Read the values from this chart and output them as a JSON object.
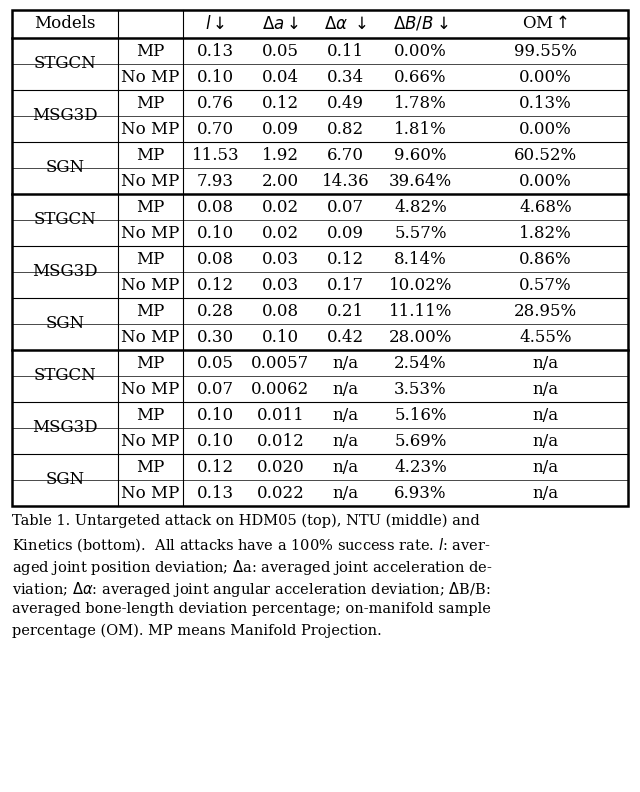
{
  "col_headers": [
    "Models",
    "",
    "$l\\downarrow$",
    "$\\Delta a\\downarrow$",
    "$\\Delta\\alpha$ $\\downarrow$",
    "$\\Delta B/B\\downarrow$",
    "OM$\\uparrow$"
  ],
  "sections": [
    {
      "rows": [
        [
          "STGCN",
          "MP",
          "0.13",
          "0.05",
          "0.11",
          "0.00%",
          "99.55%"
        ],
        [
          "STGCN",
          "No MP",
          "0.10",
          "0.04",
          "0.34",
          "0.66%",
          "0.00%"
        ],
        [
          "MSG3D",
          "MP",
          "0.76",
          "0.12",
          "0.49",
          "1.78%",
          "0.13%"
        ],
        [
          "MSG3D",
          "No MP",
          "0.70",
          "0.09",
          "0.82",
          "1.81%",
          "0.00%"
        ],
        [
          "SGN",
          "MP",
          "11.53",
          "1.92",
          "6.70",
          "9.60%",
          "60.52%"
        ],
        [
          "SGN",
          "No MP",
          "7.93",
          "2.00",
          "14.36",
          "39.64%",
          "0.00%"
        ]
      ]
    },
    {
      "rows": [
        [
          "STGCN",
          "MP",
          "0.08",
          "0.02",
          "0.07",
          "4.82%",
          "4.68%"
        ],
        [
          "STGCN",
          "No MP",
          "0.10",
          "0.02",
          "0.09",
          "5.57%",
          "1.82%"
        ],
        [
          "MSG3D",
          "MP",
          "0.08",
          "0.03",
          "0.12",
          "8.14%",
          "0.86%"
        ],
        [
          "MSG3D",
          "No MP",
          "0.12",
          "0.03",
          "0.17",
          "10.02%",
          "0.57%"
        ],
        [
          "SGN",
          "MP",
          "0.28",
          "0.08",
          "0.21",
          "11.11%",
          "28.95%"
        ],
        [
          "SGN",
          "No MP",
          "0.30",
          "0.10",
          "0.42",
          "28.00%",
          "4.55%"
        ]
      ]
    },
    {
      "rows": [
        [
          "STGCN",
          "MP",
          "0.05",
          "0.0057",
          "n/a",
          "2.54%",
          "n/a"
        ],
        [
          "STGCN",
          "No MP",
          "0.07",
          "0.0062",
          "n/a",
          "3.53%",
          "n/a"
        ],
        [
          "MSG3D",
          "MP",
          "0.10",
          "0.011",
          "n/a",
          "5.16%",
          "n/a"
        ],
        [
          "MSG3D",
          "No MP",
          "0.10",
          "0.012",
          "n/a",
          "5.69%",
          "n/a"
        ],
        [
          "SGN",
          "MP",
          "0.12",
          "0.020",
          "n/a",
          "4.23%",
          "n/a"
        ],
        [
          "SGN",
          "No MP",
          "0.13",
          "0.022",
          "n/a",
          "6.93%",
          "n/a"
        ]
      ]
    }
  ],
  "bg_color": "#ffffff",
  "text_color": "#000000",
  "line_color": "#000000"
}
